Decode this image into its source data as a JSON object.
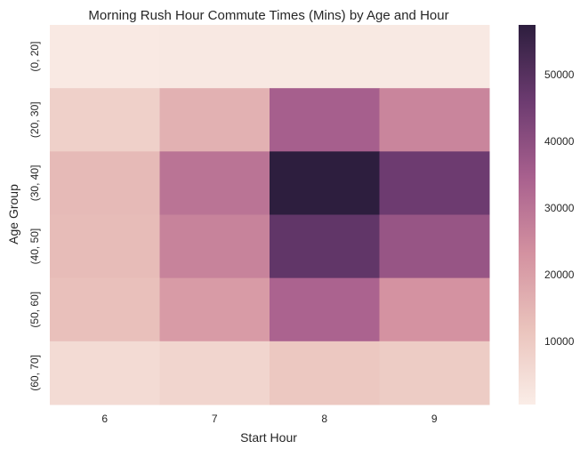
{
  "chart_data": {
    "type": "heatmap",
    "title": "Morning Rush Hour Commute Times (Mins) by Age and Hour",
    "xlabel": "Start Hour",
    "ylabel": "Age Group",
    "x_categories": [
      "6",
      "7",
      "8",
      "9"
    ],
    "y_categories": [
      "(0, 20]",
      "(20, 30]",
      "(30, 40]",
      "(40, 50]",
      "(50, 60]",
      "(60, 70]"
    ],
    "values": [
      [
        1500,
        1800,
        1700,
        1600
      ],
      [
        8500,
        16000,
        35000,
        26000
      ],
      [
        14000,
        30000,
        57500,
        46000
      ],
      [
        13500,
        26500,
        48000,
        38000
      ],
      [
        12500,
        21000,
        34000,
        23000
      ],
      [
        5500,
        7000,
        10500,
        9500
      ]
    ],
    "value_range": [
      500,
      57500
    ],
    "colorbar_ticks": [
      "10000",
      "20000",
      "30000",
      "40000",
      "50000"
    ],
    "colorbar_tick_values": [
      10000,
      20000,
      30000,
      40000,
      50000
    ],
    "colormap": [
      "#faede7",
      "#eac3bc",
      "#d391a0",
      "#a8608e",
      "#6c3b70",
      "#2d1e3e"
    ]
  }
}
